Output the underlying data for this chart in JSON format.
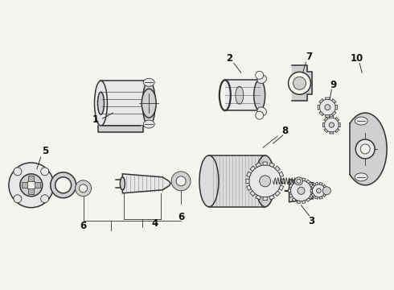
{
  "bg_color": "#f5f5f0",
  "line_color": "#333333",
  "label_color": "#111111",
  "fig_width": 4.9,
  "fig_height": 3.6,
  "dpi": 100,
  "lw_main": 1.1,
  "lw_thin": 0.6,
  "lw_thick": 1.6,
  "label_fontsize": 8.5
}
